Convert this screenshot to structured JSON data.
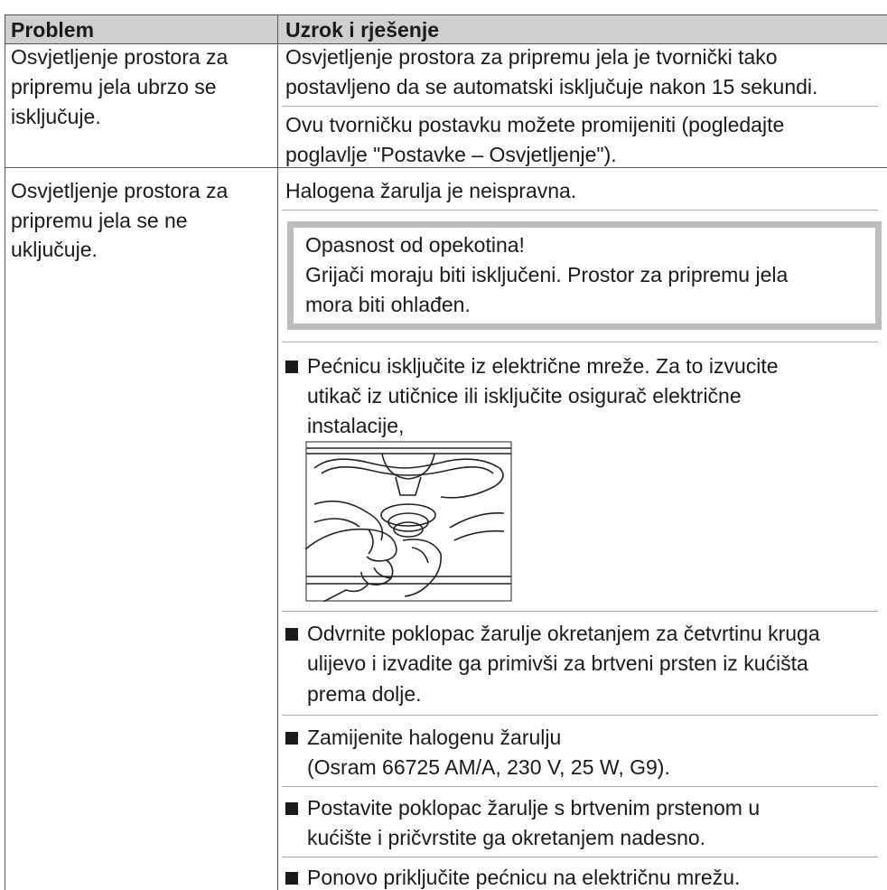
{
  "table": {
    "header": [
      "Problem",
      "Uzrok i rješenje"
    ],
    "rows": [
      {
        "problem": [
          "Osvjetljenje prostora za",
          "pripremu jela ubrzo se",
          "isključuje."
        ],
        "solution": [
          [
            "Osvjetljenje prostora za pripremu jela je tvornički tako",
            "postavljeno da se automatski isključuje nakon 15 sekundi."
          ],
          [
            "Ovu tvorničku postavku možete promijeniti (pogledajte",
            "poglavlje \"Postavke – Osvjetljenje\")."
          ]
        ]
      },
      {
        "problem": [
          "Osvjetljenje prostora za",
          "pripremu jela se ne",
          "uključuje."
        ],
        "cause": "Halogena žarulja je neispravna.",
        "warning": [
          "Opasnost od opekotina!",
          "Grijači moraju biti isključeni. Prostor za pripremu jela",
          "mora biti ohlađen."
        ],
        "steps": [
          [
            "Pećnicu isključite iz električne mreže. Za to izvucite",
            "utikač iz utičnice ili isključite osigurač električne",
            "instalacije,"
          ],
          [
            "Odvrnite poklopac žarulje okretanjem za četvrtinu kruga",
            "ulijevo i izvadite ga primivši za brtveni prsten iz kućišta",
            "prema dolje."
          ],
          [
            "Zamijenite halogenu žarulju",
            "(Osram 66725 AM/A, 230 V, 25 W, G9)."
          ],
          [
            "Postavite poklopac žarulje s brtvenim prstenom u",
            "kućište i pričvrstite ga okretanjem nadesno."
          ],
          [
            "Ponovo priključite pećnicu na električnu mrežu."
          ]
        ]
      }
    ]
  }
}
